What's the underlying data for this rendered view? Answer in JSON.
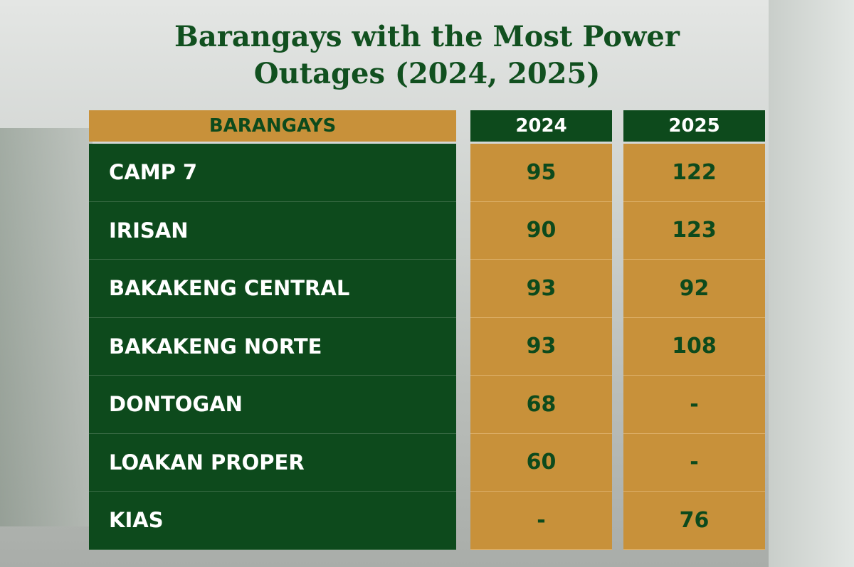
{
  "header": {
    "title_line1": "Barangays with the Most Power",
    "title_line2": "Outages (2024, 2025)"
  },
  "table": {
    "columns": [
      "BARANGAYS",
      "2024",
      "2025"
    ],
    "rows": [
      [
        "CAMP 7",
        95,
        122
      ],
      [
        "IRISAN",
        90,
        123
      ],
      [
        "BAKAKENG CENTRAL",
        93,
        92
      ],
      [
        "BAKAKENG NORTE",
        93,
        108
      ],
      [
        "DONTOGAN",
        68,
        "-"
      ],
      [
        "LOAKAN PROPER",
        60,
        "-"
      ],
      [
        "KIAS",
        "-",
        76
      ]
    ]
  }
}
